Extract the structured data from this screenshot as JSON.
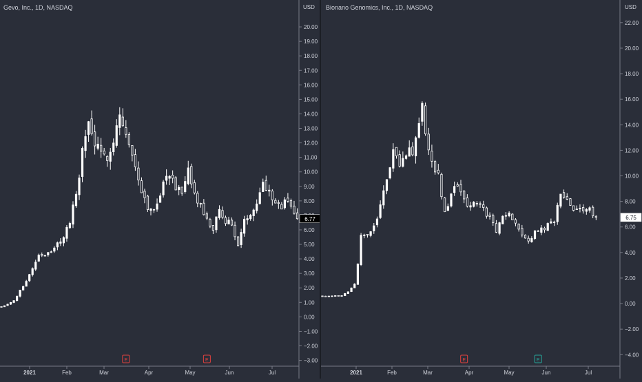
{
  "theme": {
    "background": "#2a2e39",
    "candle_color": "#ffffff",
    "axis_line": "#787b86",
    "axis_text": "#d1d4dc",
    "earnings_red": "#e0413e",
    "earnings_teal": "#26a69a"
  },
  "chart_data": [
    {
      "type": "candlestick",
      "title": "Gevo, Inc., 1D, NASDAQ",
      "unit": "USD",
      "ylim": [
        -3.4,
        21.0
      ],
      "yticks": [
        -3,
        -2,
        -1,
        0,
        1,
        2,
        3,
        4,
        5,
        6,
        7,
        8,
        9,
        10,
        11,
        12,
        13,
        14,
        15,
        16,
        17,
        18,
        19,
        20
      ],
      "last_price_label": "6.77",
      "last_price": 6.77,
      "xlabels": [
        "2021",
        "Feb",
        "Mar",
        "Apr",
        "May",
        "Jun",
        "Jul"
      ],
      "earnings_markers": [
        {
          "label": "E",
          "color": "red",
          "day_index": 40
        },
        {
          "label": "E",
          "color": "red",
          "day_index": 66
        }
      ],
      "close_path": [
        [
          0,
          0.7
        ],
        [
          4,
          1.1
        ],
        [
          6,
          1.8
        ],
        [
          9,
          2.9
        ],
        [
          12,
          4.3
        ],
        [
          16,
          4.4
        ],
        [
          20,
          5.6
        ],
        [
          22,
          6.5
        ],
        [
          24,
          8.5
        ],
        [
          26,
          11.3
        ],
        [
          28,
          13.4
        ],
        [
          30,
          12.0
        ],
        [
          32,
          11.0
        ],
        [
          34,
          11.2
        ],
        [
          36,
          12.3
        ],
        [
          38,
          14.0
        ],
        [
          40,
          12.5
        ],
        [
          42,
          11.0
        ],
        [
          44,
          9.6
        ],
        [
          46,
          8.2
        ],
        [
          48,
          7.2
        ],
        [
          50,
          8.0
        ],
        [
          52,
          9.3
        ],
        [
          54,
          10.0
        ],
        [
          56,
          9.0
        ],
        [
          58,
          8.3
        ],
        [
          60,
          9.9
        ],
        [
          62,
          8.4
        ],
        [
          64,
          7.6
        ],
        [
          66,
          6.6
        ],
        [
          68,
          6.1
        ],
        [
          70,
          7.2
        ],
        [
          72,
          6.7
        ],
        [
          74,
          6.3
        ],
        [
          76,
          5.0
        ],
        [
          78,
          6.5
        ],
        [
          80,
          7.2
        ],
        [
          82,
          8.1
        ],
        [
          84,
          9.2
        ],
        [
          86,
          8.8
        ],
        [
          88,
          8.0
        ],
        [
          90,
          7.5
        ],
        [
          92,
          8.2
        ],
        [
          94,
          7.1
        ],
        [
          95,
          6.77
        ]
      ]
    },
    {
      "type": "candlestick",
      "title": "Bionano Genomics, Inc., 1D, NASDAQ",
      "unit": "USD",
      "ylim": [
        -4.9,
        22.8
      ],
      "yticks": [
        -4,
        -2,
        0,
        2,
        4,
        6,
        8,
        10,
        12,
        14,
        16,
        18,
        20,
        22
      ],
      "last_price_label": "6.75",
      "last_price": 6.75,
      "xlabels": [
        "2021",
        "Feb",
        "Mar",
        "Apr",
        "May",
        "Jun",
        "Jul"
      ],
      "earnings_markers": [
        {
          "label": "E",
          "color": "red",
          "day_index": 44
        },
        {
          "label": "E",
          "color": "teal",
          "day_index": 67
        }
      ],
      "close_path": [
        [
          0,
          0.6
        ],
        [
          6,
          0.62
        ],
        [
          8,
          0.9
        ],
        [
          10,
          1.5
        ],
        [
          11,
          3.0
        ],
        [
          12,
          5.5
        ],
        [
          14,
          5.2
        ],
        [
          16,
          6.0
        ],
        [
          18,
          7.5
        ],
        [
          20,
          9.5
        ],
        [
          22,
          12.5
        ],
        [
          24,
          11.0
        ],
        [
          26,
          12.0
        ],
        [
          28,
          11.6
        ],
        [
          30,
          13.6
        ],
        [
          31,
          15.2
        ],
        [
          32,
          13.4
        ],
        [
          34,
          11.1
        ],
        [
          36,
          10.0
        ],
        [
          38,
          7.1
        ],
        [
          40,
          8.6
        ],
        [
          42,
          9.2
        ],
        [
          44,
          8.4
        ],
        [
          46,
          7.4
        ],
        [
          48,
          8.1
        ],
        [
          50,
          7.3
        ],
        [
          52,
          6.7
        ],
        [
          54,
          5.6
        ],
        [
          56,
          6.6
        ],
        [
          58,
          7.1
        ],
        [
          60,
          6.2
        ],
        [
          62,
          5.3
        ],
        [
          64,
          4.9
        ],
        [
          66,
          5.5
        ],
        [
          68,
          5.8
        ],
        [
          70,
          6.1
        ],
        [
          72,
          6.5
        ],
        [
          74,
          8.4
        ],
        [
          76,
          7.9
        ],
        [
          78,
          7.5
        ],
        [
          80,
          7.2
        ],
        [
          82,
          7.6
        ],
        [
          84,
          6.9
        ],
        [
          85,
          6.75
        ]
      ]
    }
  ]
}
